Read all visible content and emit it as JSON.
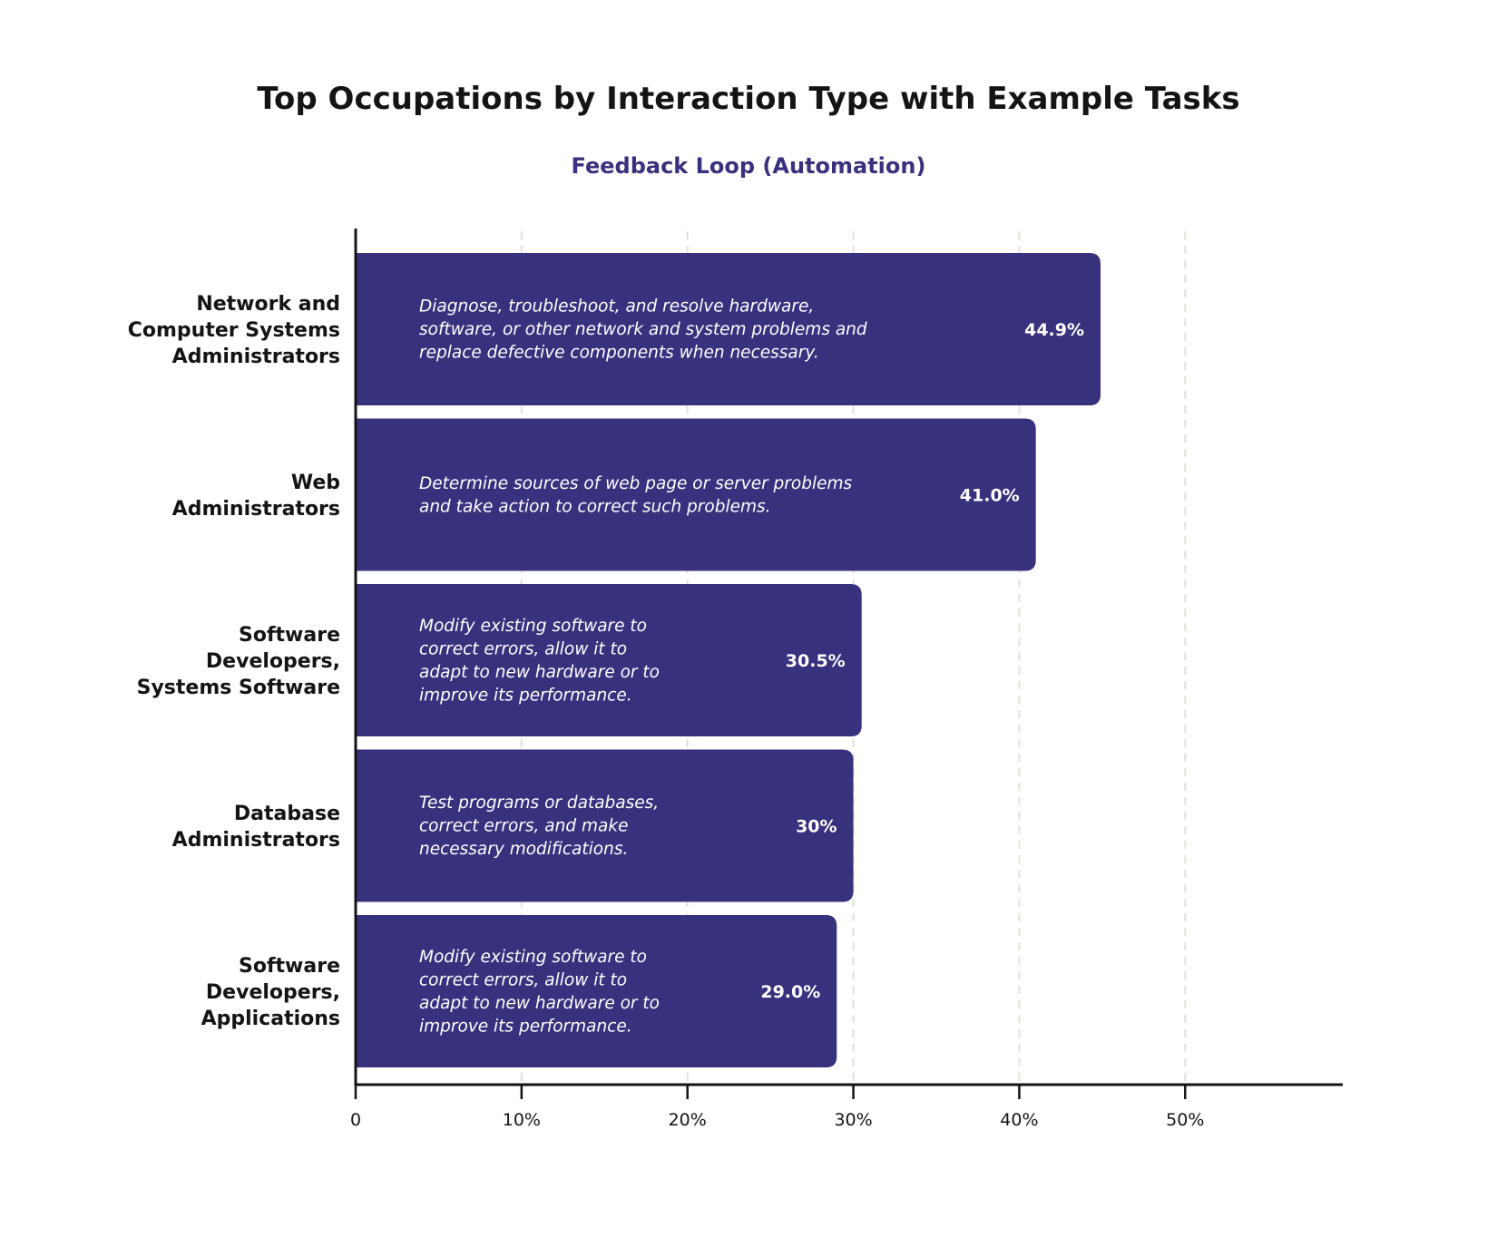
{
  "chart_data": {
    "type": "bar",
    "orientation": "horizontal",
    "title": "Top Occupations by Interaction Type with Example Tasks",
    "subtitle": "Feedback Loop (Automation)",
    "categories": [
      [
        "Network and",
        "Computer Systems",
        "Administrators"
      ],
      [
        "Web",
        "Administrators"
      ],
      [
        "Software",
        "Developers,",
        "Systems Software"
      ],
      [
        "Database",
        "Administrators"
      ],
      [
        "Software",
        "Developers,",
        "Applications"
      ]
    ],
    "values": [
      44.9,
      41.0,
      30.5,
      30.0,
      29.0
    ],
    "value_labels": [
      "44.9%",
      "41.0%",
      "30.5%",
      "30%",
      "29.0%"
    ],
    "tasks": [
      [
        "Diagnose, troubleshoot, and resolve hardware,",
        "software, or other network and system problems and",
        "replace defective components when necessary."
      ],
      [
        "Determine sources of web page or server problems",
        "and take action to correct such problems."
      ],
      [
        "Modify existing software to",
        "correct errors, allow it to",
        "adapt to new hardware or to",
        "improve its performance."
      ],
      [
        "Test programs or databases,",
        "correct errors, and make",
        "necessary modifications."
      ],
      [
        "Modify existing software to",
        "correct errors, allow it to",
        "adapt to new hardware or to",
        "improve its performance."
      ]
    ],
    "x_ticks": [
      0,
      10,
      20,
      30,
      40,
      50
    ],
    "x_tick_labels": [
      "0",
      "10%",
      "20%",
      "30%",
      "40%",
      "50%"
    ],
    "xlim": [
      0,
      59.5
    ],
    "xlabel": "",
    "ylabel": "",
    "grid": "vertical dashed"
  },
  "colors": {
    "bar": "#38317d",
    "subtitle": "#38317d",
    "axis": "#141414",
    "grid": "#dde4d6",
    "text": "#141414",
    "bar_text": "#ffffff",
    "background": "#ffffff"
  }
}
